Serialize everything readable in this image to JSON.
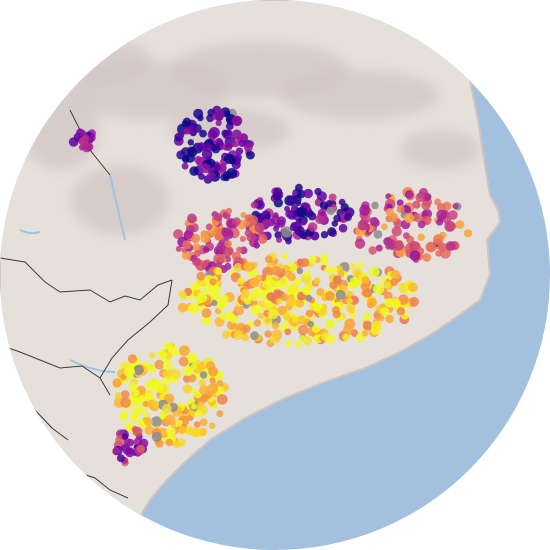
{
  "map": {
    "view": "circular-inset",
    "region_shape": "northeast-iberian-coastal-region",
    "basemap": "shaded-relief",
    "colors": {
      "sea": "#a3c0df",
      "land": "#e6e0da",
      "land_shadow": "#cfc4be",
      "mountain_relief": "#d2c5c3",
      "boundary": "#3b3b3b",
      "river": "#9cc4e6"
    },
    "color_scale": {
      "name": "plasma",
      "stops": [
        "#0d0887",
        "#5c01a6",
        "#9c179e",
        "#cc4778",
        "#ed7953",
        "#fdb42f",
        "#f0f921"
      ],
      "nodata_color": "#8c8c8c"
    },
    "point_clusters": [
      {
        "id": "northern-valley",
        "level": 0.12
      },
      {
        "id": "central-northeast",
        "level": 0.2
      },
      {
        "id": "north-coast",
        "level": 0.55
      },
      {
        "id": "northern-plains",
        "level": 0.55
      },
      {
        "id": "central-coast-plain",
        "level": 0.88
      },
      {
        "id": "southern-coast",
        "level": 0.93
      },
      {
        "id": "delta-southwest",
        "level": 0.35
      },
      {
        "id": "northwest-outlier",
        "level": 0.3
      }
    ]
  }
}
